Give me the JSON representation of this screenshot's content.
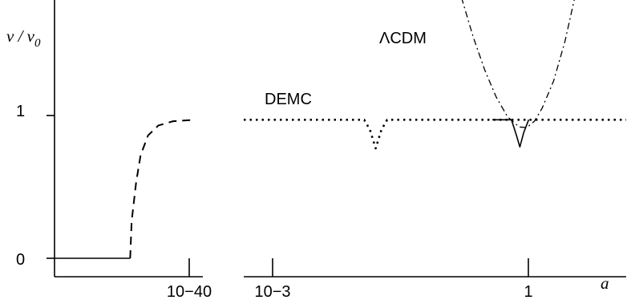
{
  "chart_data": {
    "type": "line",
    "title": "",
    "ylabel": {
      "prefix": "v",
      "sep": " / ",
      "base": "v",
      "sub": "0"
    },
    "xlabel": "a",
    "y_ticks": [
      {
        "value": 0,
        "label": "0"
      },
      {
        "value": 1,
        "label": "1"
      }
    ],
    "panels": [
      {
        "id": "left",
        "x_ticks": [
          {
            "label": "10−40"
          }
        ],
        "series": [
          {
            "style": "solid",
            "points": [
              [
                0,
                0
              ],
              [
                0.51,
                0
              ]
            ]
          },
          {
            "style": "dashed",
            "points": [
              [
                0.51,
                0
              ],
              [
                0.52,
                0.26
              ],
              [
                0.55,
                0.53
              ],
              [
                0.58,
                0.72
              ],
              [
                0.63,
                0.86
              ],
              [
                0.7,
                0.93
              ],
              [
                0.8,
                0.96
              ],
              [
                0.95,
                0.97
              ]
            ]
          }
        ]
      },
      {
        "id": "right",
        "x_ticks": [
          {
            "label": "10−3"
          },
          {
            "label": "1"
          }
        ],
        "annotations": [
          {
            "text": "DEMC"
          },
          {
            "text": "ΛCDM"
          }
        ],
        "series": [
          {
            "name": "DEMC",
            "style": "dotted",
            "points": [
              [
                0,
                0.97
              ],
              [
                0.315,
                0.97
              ],
              [
                0.33,
                0.9
              ],
              [
                0.345,
                0.77
              ],
              [
                0.36,
                0.9
              ],
              [
                0.375,
                0.97
              ],
              [
                1,
                0.97
              ]
            ]
          },
          {
            "name": "ΛCDM",
            "style": "dashdot",
            "points": [
              [
                0.54,
                2.12
              ],
              [
                0.57,
                1.82
              ],
              [
                0.6,
                1.55
              ],
              [
                0.63,
                1.32
              ],
              [
                0.66,
                1.13
              ],
              [
                0.69,
                0.99
              ],
              [
                0.72,
                0.92
              ],
              [
                0.74,
                0.915
              ],
              [
                0.76,
                0.96
              ],
              [
                0.78,
                1.05
              ],
              [
                0.81,
                1.24
              ],
              [
                0.84,
                1.52
              ],
              [
                0.87,
                1.88
              ],
              [
                0.89,
                2.12
              ]
            ]
          },
          {
            "style": "solid",
            "points": [
              [
                0.65,
                0.97
              ],
              [
                0.7,
                0.97
              ],
              [
                0.712,
                0.87
              ],
              [
                0.722,
                0.78
              ],
              [
                0.732,
                0.88
              ],
              [
                0.745,
                0.97
              ]
            ]
          }
        ]
      }
    ]
  }
}
